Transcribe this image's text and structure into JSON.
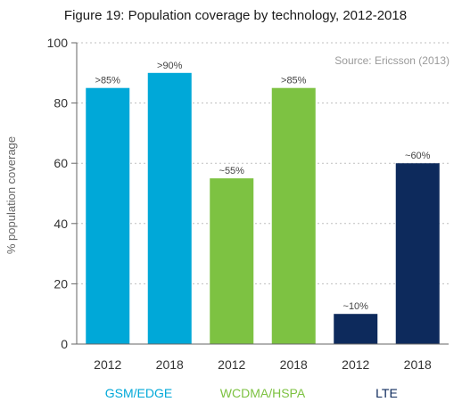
{
  "chart_data": {
    "type": "bar",
    "title": "Figure 19: Population coverage by technology, 2012-2018",
    "source": "Source: Ericsson (2013)",
    "ylabel": "% population coverage",
    "ylim": [
      0,
      100
    ],
    "yticks": [
      0,
      20,
      40,
      60,
      80,
      100
    ],
    "grid": "dashed horizontal",
    "bars": [
      {
        "group": "GSM/EDGE",
        "category": "2012",
        "value": 85,
        "label": ">85%",
        "color": "#00a8d8"
      },
      {
        "group": "GSM/EDGE",
        "category": "2018",
        "value": 90,
        "label": ">90%",
        "color": "#00a8d8"
      },
      {
        "group": "WCDMA/HSPA",
        "category": "2012",
        "value": 55,
        "label": "~55%",
        "color": "#7dc242"
      },
      {
        "group": "WCDMA/HSPA",
        "category": "2018",
        "value": 85,
        "label": ">85%",
        "color": "#7dc242"
      },
      {
        "group": "LTE",
        "category": "2012",
        "value": 10,
        "label": "~10%",
        "color": "#0d2a5c"
      },
      {
        "group": "LTE",
        "category": "2018",
        "value": 60,
        "label": "~60%",
        "color": "#0d2a5c"
      }
    ],
    "groups": [
      {
        "name": "GSM/EDGE",
        "color": "#00a8d8"
      },
      {
        "name": "WCDMA/HSPA",
        "color": "#7dc242"
      },
      {
        "name": "LTE",
        "color": "#0d2a5c"
      }
    ]
  }
}
